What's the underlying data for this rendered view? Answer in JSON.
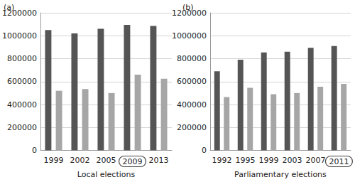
{
  "chart_data": [
    {
      "type": "bar",
      "title": "(a)",
      "xlabel": "Local elections",
      "categories": [
        "1999",
        "2002",
        "2005",
        "2009",
        "2013"
      ],
      "series": [
        {
          "color": "#555555",
          "values": [
            1050000,
            1020000,
            1060000,
            1095000,
            1085000
          ]
        },
        {
          "color": "#a6a6a6",
          "values": [
            520000,
            535000,
            500000,
            660000,
            625000
          ]
        }
      ],
      "ylim": [
        0,
        1200000
      ],
      "yticks": [
        0,
        200000,
        400000,
        600000,
        800000,
        1000000,
        1200000
      ],
      "grid": true
    },
    {
      "type": "bar",
      "title": "(b)",
      "xlabel": "Parliamentary elections",
      "categories": [
        "1992",
        "1995",
        "1999",
        "2003",
        "2007",
        "2011"
      ],
      "series": [
        {
          "color": "#555555",
          "values": [
            690000,
            790000,
            855000,
            860000,
            895000,
            910000
          ]
        },
        {
          "color": "#a6a6a6",
          "values": [
            465000,
            545000,
            490000,
            500000,
            555000,
            580000
          ]
        }
      ],
      "ylim": [
        0,
        1200000
      ],
      "yticks": [
        0,
        200000,
        400000,
        600000,
        800000,
        1000000,
        1200000
      ],
      "grid": true
    }
  ]
}
